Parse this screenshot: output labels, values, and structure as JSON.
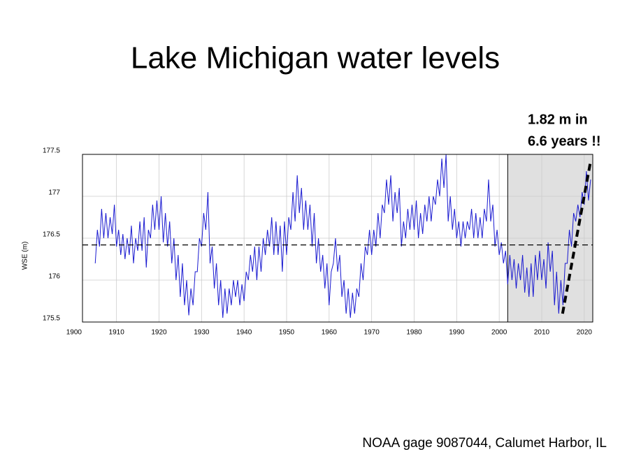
{
  "chart_data": {
    "type": "line",
    "title": "Lake Michigan water levels",
    "y_label": "WSE (m)",
    "annotation": [
      "1.82 m in",
      "6.6 years !!"
    ],
    "source": "NOAA gage 9087044, Calumet Harbor, IL",
    "color": "#1a1ad0",
    "grid": true,
    "xlim": [
      1902,
      2022
    ],
    "ylim": [
      175.5,
      177.5
    ],
    "xticks": [
      1900,
      1910,
      1920,
      1930,
      1940,
      1950,
      1960,
      1970,
      1980,
      1990,
      2000,
      2010,
      2020
    ],
    "yticks": [
      175.5,
      176,
      176.5,
      177,
      177.5
    ],
    "mean_level": 176.42,
    "shaded_region": [
      2002,
      2022
    ],
    "trend_line": {
      "x": [
        2014.9,
        2021.5
      ],
      "y": [
        175.6,
        177.42
      ]
    },
    "x": [
      1905,
      1905.5,
      1906,
      1906.5,
      1907,
      1907.5,
      1908,
      1908.5,
      1909,
      1909.5,
      1910,
      1910.5,
      1911,
      1911.5,
      1912,
      1912.5,
      1913,
      1913.5,
      1914,
      1914.5,
      1915,
      1915.5,
      1916,
      1916.5,
      1917,
      1917.5,
      1918,
      1918.5,
      1919,
      1919.5,
      1920,
      1920.5,
      1921,
      1921.5,
      1922,
      1922.5,
      1923,
      1923.5,
      1924,
      1924.5,
      1925,
      1925.5,
      1926,
      1926.5,
      1927,
      1927.5,
      1928,
      1928.5,
      1929,
      1929.5,
      1930,
      1930.5,
      1931,
      1931.5,
      1932,
      1932.5,
      1933,
      1933.5,
      1934,
      1934.5,
      1935,
      1935.5,
      1936,
      1936.5,
      1937,
      1937.5,
      1938,
      1938.5,
      1939,
      1939.5,
      1940,
      1940.5,
      1941,
      1941.5,
      1942,
      1942.5,
      1943,
      1943.5,
      1944,
      1944.5,
      1945,
      1945.5,
      1946,
      1946.5,
      1947,
      1947.5,
      1948,
      1948.5,
      1949,
      1949.5,
      1950,
      1950.5,
      1951,
      1951.5,
      1952,
      1952.5,
      1953,
      1953.5,
      1954,
      1954.5,
      1955,
      1955.5,
      1956,
      1956.5,
      1957,
      1957.5,
      1958,
      1958.5,
      1959,
      1959.5,
      1960,
      1960.5,
      1961,
      1961.5,
      1962,
      1962.5,
      1963,
      1963.5,
      1964,
      1964.5,
      1965,
      1965.5,
      1966,
      1966.5,
      1967,
      1967.5,
      1968,
      1968.5,
      1969,
      1969.5,
      1970,
      1970.5,
      1971,
      1971.5,
      1972,
      1972.5,
      1973,
      1973.5,
      1974,
      1974.5,
      1975,
      1975.5,
      1976,
      1976.5,
      1977,
      1977.5,
      1978,
      1978.5,
      1979,
      1979.5,
      1980,
      1980.5,
      1981,
      1981.5,
      1982,
      1982.5,
      1983,
      1983.5,
      1984,
      1984.5,
      1985,
      1985.5,
      1986,
      1986.5,
      1987,
      1987.5,
      1988,
      1988.5,
      1989,
      1989.5,
      1990,
      1990.5,
      1991,
      1991.5,
      1992,
      1992.5,
      1993,
      1993.5,
      1994,
      1994.5,
      1995,
      1995.5,
      1996,
      1996.5,
      1997,
      1997.5,
      1998,
      1998.5,
      1999,
      1999.5,
      2000,
      2000.5,
      2001,
      2001.5,
      2002,
      2002.5,
      2003,
      2003.5,
      2004,
      2004.5,
      2005,
      2005.5,
      2006,
      2006.5,
      2007,
      2007.5,
      2008,
      2008.5,
      2009,
      2009.5,
      2010,
      2010.5,
      2011,
      2011.5,
      2012,
      2012.5,
      2013,
      2013.5,
      2014,
      2014.5,
      2015,
      2015.5,
      2016,
      2016.5,
      2017,
      2017.5,
      2018,
      2018.5,
      2019,
      2019.5,
      2020,
      2020.5,
      2021,
      2021.5
    ],
    "values": [
      176.2,
      176.6,
      176.4,
      176.85,
      176.5,
      176.8,
      176.5,
      176.75,
      176.55,
      176.9,
      176.4,
      176.6,
      176.3,
      176.55,
      176.25,
      176.5,
      176.3,
      176.65,
      176.2,
      176.5,
      176.35,
      176.7,
      176.35,
      176.75,
      176.15,
      176.6,
      176.5,
      176.9,
      176.6,
      176.95,
      176.6,
      177.0,
      176.45,
      176.8,
      176.4,
      176.7,
      176.2,
      176.5,
      176.0,
      176.3,
      175.8,
      176.2,
      175.7,
      176.0,
      175.58,
      175.9,
      175.7,
      176.1,
      176.1,
      176.5,
      176.4,
      176.8,
      176.6,
      177.05,
      176.2,
      176.4,
      175.9,
      176.2,
      175.7,
      176.0,
      175.55,
      175.9,
      175.6,
      175.9,
      175.7,
      176.0,
      175.8,
      176.0,
      175.7,
      175.95,
      175.75,
      176.1,
      176.0,
      176.3,
      176.1,
      176.4,
      176.0,
      176.4,
      176.1,
      176.5,
      176.3,
      176.6,
      176.4,
      176.75,
      176.3,
      176.7,
      176.3,
      176.65,
      176.1,
      176.7,
      176.3,
      176.75,
      176.6,
      177.05,
      176.7,
      177.25,
      176.8,
      177.1,
      176.6,
      176.95,
      176.6,
      176.9,
      176.4,
      176.8,
      176.2,
      176.5,
      176.1,
      176.3,
      175.9,
      176.2,
      175.7,
      176.1,
      176.2,
      176.5,
      176.1,
      176.3,
      175.8,
      176.0,
      175.6,
      175.9,
      175.55,
      175.85,
      175.6,
      175.9,
      175.8,
      176.2,
      176.0,
      176.4,
      176.3,
      176.6,
      176.3,
      176.6,
      176.4,
      176.8,
      176.5,
      176.9,
      176.8,
      177.2,
      176.9,
      177.25,
      176.7,
      177.05,
      176.8,
      177.1,
      176.4,
      176.7,
      176.5,
      176.85,
      176.6,
      176.9,
      176.6,
      176.95,
      176.5,
      176.8,
      176.55,
      176.9,
      176.7,
      177.0,
      176.7,
      177.0,
      176.9,
      177.2,
      177.0,
      177.45,
      177.1,
      177.5,
      176.7,
      177.0,
      176.6,
      176.85,
      176.5,
      176.7,
      176.4,
      176.7,
      176.5,
      176.7,
      176.6,
      176.85,
      176.5,
      176.8,
      176.5,
      176.75,
      176.5,
      176.85,
      176.7,
      177.2,
      176.7,
      176.9,
      176.4,
      176.6,
      176.3,
      176.45,
      176.2,
      176.35,
      175.95,
      176.3,
      176.0,
      176.25,
      175.9,
      176.2,
      176.0,
      176.3,
      175.85,
      176.15,
      175.8,
      176.2,
      175.8,
      176.3,
      176.0,
      176.35,
      176.0,
      176.25,
      175.9,
      176.45,
      176.1,
      176.35,
      175.7,
      176.1,
      175.6,
      176.0,
      175.7,
      176.2,
      176.2,
      176.6,
      176.4,
      176.8,
      176.7,
      176.9,
      176.75,
      177.05,
      176.9,
      177.3,
      176.95,
      177.2
    ]
  }
}
